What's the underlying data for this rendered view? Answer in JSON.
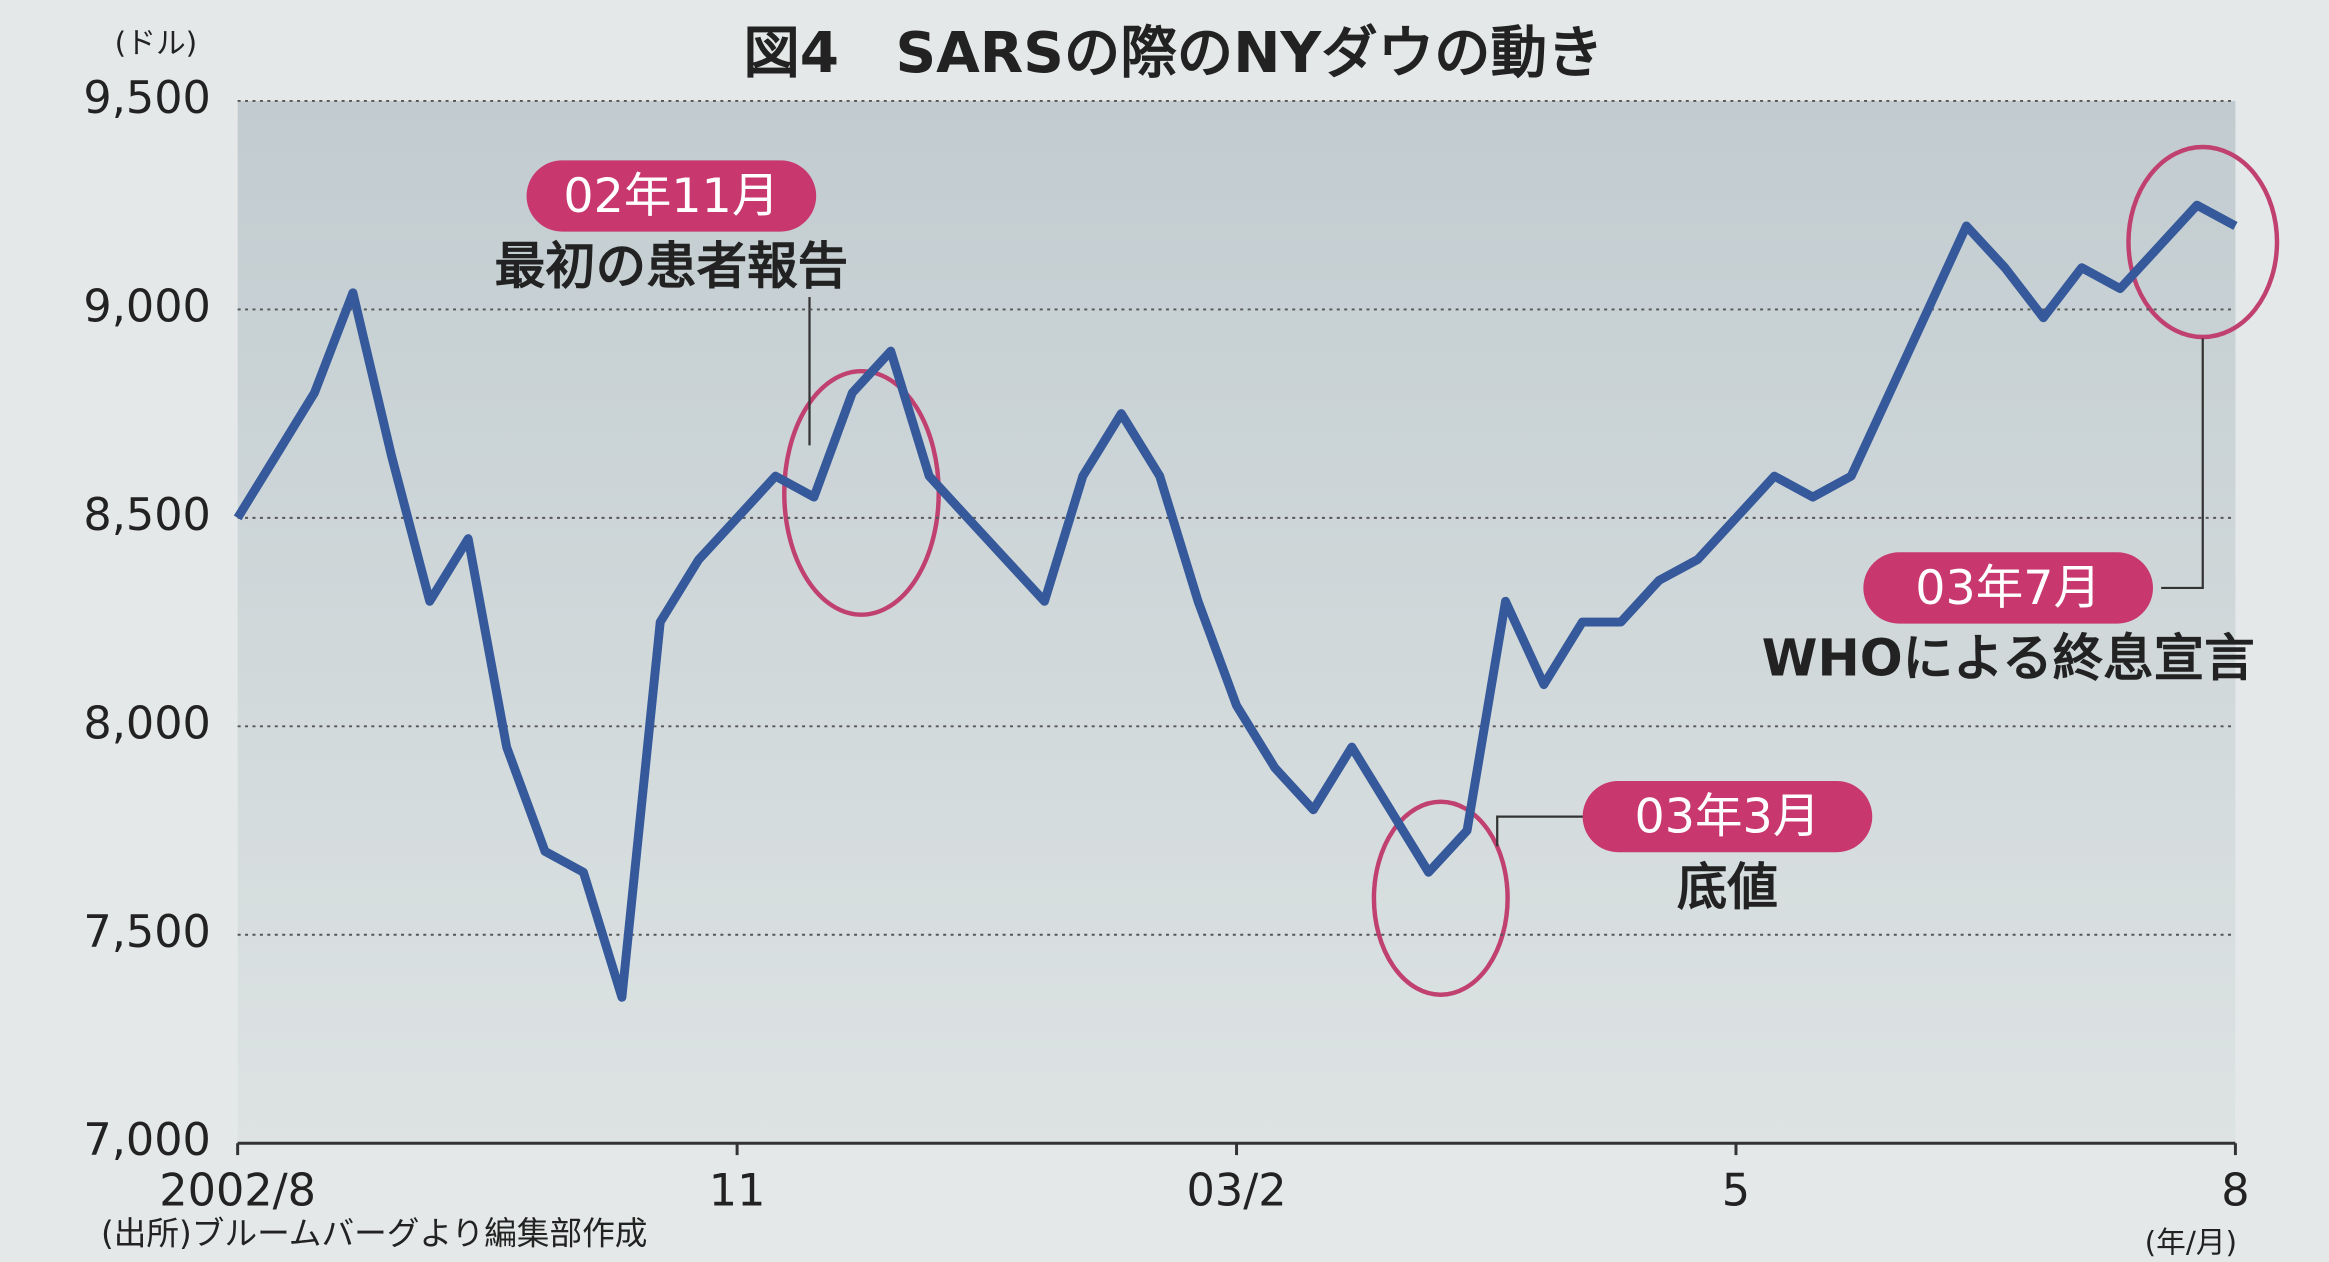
{
  "chart_data": {
    "type": "line",
    "title": "図4　SARSの際のNYダウの動き",
    "y_unit": "(ドル)",
    "x_unit": "(年/月)",
    "source": "(出所)ブルームバーグより編集部作成",
    "values": [
      8500,
      8650,
      8800,
      9040,
      8650,
      8300,
      8450,
      7950,
      7700,
      7650,
      7350,
      8250,
      8400,
      8500,
      8600,
      8550,
      8800,
      8900,
      8600,
      8500,
      8400,
      8300,
      8600,
      8750,
      8600,
      8300,
      8050,
      7900,
      7800,
      7950,
      7800,
      7650,
      7750,
      8300,
      8100,
      8250,
      8250,
      8350,
      8400,
      8500,
      8600,
      8550,
      8600,
      8800,
      9000,
      9200,
      9100,
      8980,
      9100,
      9050,
      9150,
      9250,
      9200
    ],
    "color": "#35599a",
    "xlim": [
      0,
      52
    ],
    "xticks": [
      {
        "value": 0,
        "label": "2002/8"
      },
      {
        "value": 13,
        "label": "11"
      },
      {
        "value": 26,
        "label": "03/2"
      },
      {
        "value": 39,
        "label": "5"
      },
      {
        "value": 52,
        "label": "8"
      }
    ],
    "ylim": [
      7000,
      9500
    ],
    "yticks": [
      {
        "value": 7000,
        "label": "7,000"
      },
      {
        "value": 7500,
        "label": "7,500"
      },
      {
        "value": 8000,
        "label": "8,000"
      },
      {
        "value": 8500,
        "label": "8,500"
      },
      {
        "value": 9000,
        "label": "9,000"
      },
      {
        "value": 9500,
        "label": "9,500"
      }
    ],
    "grid": true,
    "annotations": [
      {
        "tag": "02年11月",
        "text": "最初の患者報告"
      },
      {
        "tag": "03年3月",
        "text": "底値"
      },
      {
        "tag": "03年7月",
        "text": "WHOによる終息宣言"
      }
    ]
  }
}
